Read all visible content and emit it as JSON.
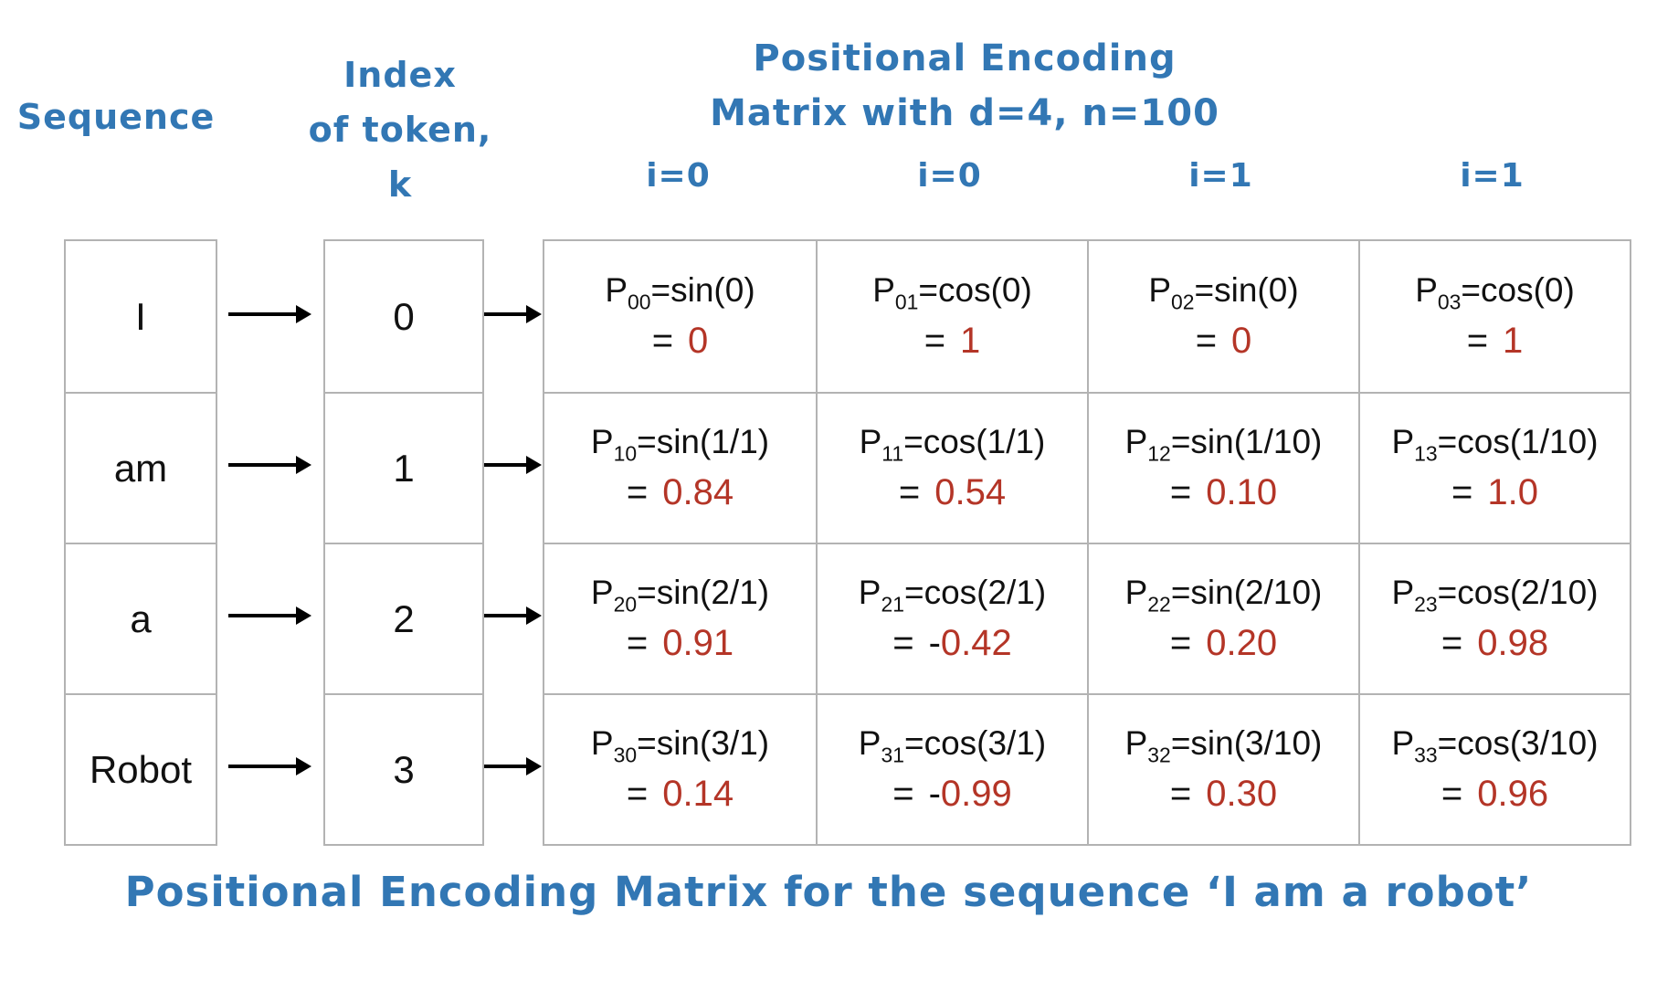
{
  "colors": {
    "blue": "#3277b4",
    "red": "#b43527",
    "ink": "#111111",
    "border": "#b3b3b3",
    "arrow": "#000000"
  },
  "labels": {
    "sequence_title": "Sequence",
    "index_title_lines": [
      "Index",
      "of token,",
      "k"
    ],
    "matrix_title_lines": [
      "Positional Encoding",
      "Matrix with d=4, n=100"
    ],
    "p_symbol": "P",
    "eq": "=",
    "caption": "Positional Encoding Matrix for the sequence ‘I am a robot’"
  },
  "column_headers": [
    "i=0",
    "i=0",
    "i=1",
    "i=1"
  ],
  "sequence_tokens": [
    "I",
    "am",
    "a",
    "Robot"
  ],
  "token_indices": [
    "0",
    "1",
    "2",
    "3"
  ],
  "matrix_cells": [
    [
      {
        "sub": "00",
        "expr": "=sin(0)",
        "sign": "",
        "value": "0"
      },
      {
        "sub": "01",
        "expr": "=cos(0)",
        "sign": "",
        "value": "1"
      },
      {
        "sub": "02",
        "expr": "=sin(0)",
        "sign": "",
        "value": "0"
      },
      {
        "sub": "03",
        "expr": "=cos(0)",
        "sign": "",
        "value": "1"
      }
    ],
    [
      {
        "sub": "10",
        "expr": "=sin(1/1)",
        "sign": "",
        "value": "0.84"
      },
      {
        "sub": "11",
        "expr": "=cos(1/1)",
        "sign": "",
        "value": "0.54"
      },
      {
        "sub": "12",
        "expr": "=sin(1/10)",
        "sign": "",
        "value": "0.10"
      },
      {
        "sub": "13",
        "expr": "=cos(1/10)",
        "sign": "",
        "value": "1.0"
      }
    ],
    [
      {
        "sub": "20",
        "expr": "=sin(2/1)",
        "sign": "",
        "value": "0.91"
      },
      {
        "sub": "21",
        "expr": "=cos(2/1)",
        "sign": "-",
        "value": "0.42"
      },
      {
        "sub": "22",
        "expr": "=sin(2/10)",
        "sign": "",
        "value": "0.20"
      },
      {
        "sub": "23",
        "expr": "=cos(2/10)",
        "sign": "",
        "value": "0.98"
      }
    ],
    [
      {
        "sub": "30",
        "expr": "=sin(3/1)",
        "sign": "",
        "value": "0.14"
      },
      {
        "sub": "31",
        "expr": "=cos(3/1)",
        "sign": "-",
        "value": "0.99"
      },
      {
        "sub": "32",
        "expr": "=sin(3/10)",
        "sign": "",
        "value": "0.30"
      },
      {
        "sub": "33",
        "expr": "=cos(3/10)",
        "sign": "",
        "value": "0.96"
      }
    ]
  ]
}
